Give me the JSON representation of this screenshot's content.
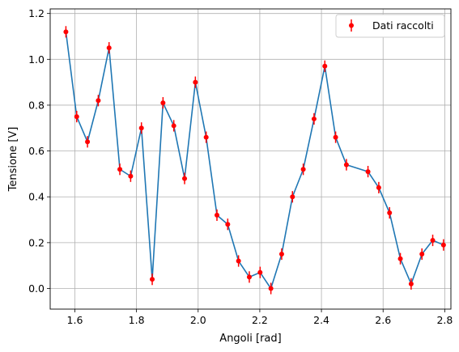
{
  "chart_data": {
    "type": "line",
    "title": "",
    "xlabel": "Angoli [rad]",
    "ylabel": "Tensione [V]",
    "xlim": [
      1.52,
      2.82
    ],
    "ylim": [
      -0.09,
      1.22
    ],
    "xticks": [
      "1.6",
      "1.8",
      "2.0",
      "2.2",
      "2.4",
      "2.6",
      "2.8"
    ],
    "yticks": [
      "0.0",
      "0.2",
      "0.4",
      "0.6",
      "0.8",
      "1.0",
      "1.2"
    ],
    "grid": true,
    "legend_position": "top-right",
    "colors": {
      "line": "#1f77b4",
      "points": "#ff0000"
    },
    "x": [
      1.571,
      1.606,
      1.641,
      1.676,
      1.711,
      1.746,
      1.781,
      1.816,
      1.851,
      1.886,
      1.921,
      1.956,
      1.991,
      2.026,
      2.061,
      2.096,
      2.131,
      2.166,
      2.201,
      2.236,
      2.271,
      2.306,
      2.341,
      2.376,
      2.411,
      2.446,
      2.481,
      2.551,
      2.586,
      2.621,
      2.656,
      2.691,
      2.726,
      2.761,
      2.796
    ],
    "series": [
      {
        "name": "",
        "kind": "line",
        "values": [
          1.12,
          0.75,
          0.64,
          0.82,
          1.05,
          0.52,
          0.49,
          0.7,
          0.04,
          0.81,
          0.71,
          0.48,
          0.9,
          0.66,
          0.32,
          0.28,
          0.12,
          0.05,
          0.07,
          0.0,
          0.15,
          0.4,
          0.52,
          0.74,
          0.97,
          0.66,
          0.54,
          0.51,
          0.44,
          0.33,
          0.13,
          0.02,
          0.15,
          0.21,
          0.19
        ]
      },
      {
        "name": "Dati raccolti",
        "kind": "errorbar",
        "values": [
          1.12,
          0.75,
          0.64,
          0.82,
          1.05,
          0.52,
          0.49,
          0.7,
          0.04,
          0.81,
          0.71,
          0.48,
          0.9,
          0.66,
          0.32,
          0.28,
          0.12,
          0.05,
          0.07,
          0.0,
          0.15,
          0.4,
          0.52,
          0.74,
          0.97,
          0.66,
          0.54,
          0.51,
          0.44,
          0.33,
          0.13,
          0.02,
          0.15,
          0.21,
          0.19
        ],
        "yerr": 0.025
      }
    ]
  }
}
